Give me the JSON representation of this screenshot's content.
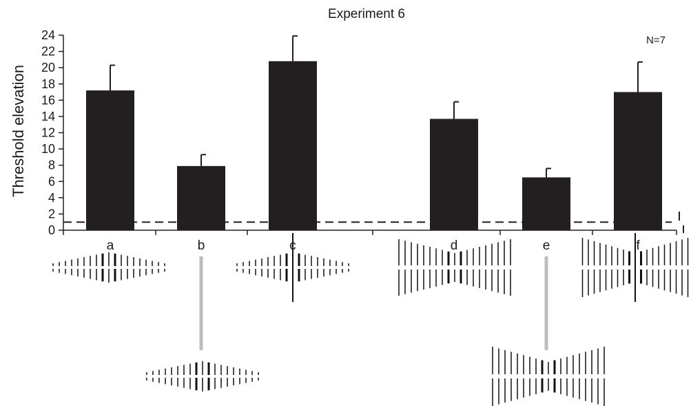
{
  "chart_data": {
    "type": "bar",
    "title": "Experiment 6",
    "ylabel": "Threshold elevation",
    "xlabel": "",
    "annotation": "N=7",
    "categories": [
      "a",
      "b",
      "c",
      "d",
      "e",
      "f"
    ],
    "values": [
      17.2,
      7.9,
      20.8,
      13.7,
      6.5,
      17.0
    ],
    "errors": [
      3.1,
      1.4,
      3.1,
      2.1,
      1.1,
      3.7
    ],
    "ylim": [
      0,
      24
    ],
    "yticks": [
      0,
      2,
      4,
      6,
      8,
      10,
      12,
      14,
      16,
      18,
      20,
      22,
      24
    ],
    "reference_line": 1,
    "grid": false,
    "bar_color": "#231f20",
    "stimulus_icons": [
      "bar-grating-stimulus-icon",
      "vertical-grating-stimulus-icon"
    ]
  }
}
